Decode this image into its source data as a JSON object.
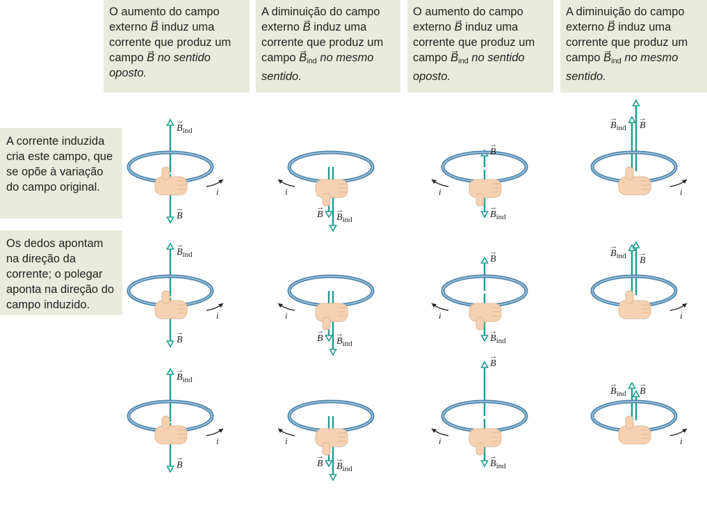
{
  "headers": [
    {
      "pre": "O aumento do campo externo ",
      "vec": "B",
      "mid": " induz uma corrente que produz um campo ",
      "vec2": "B",
      "vec2_sub": "",
      "post": "no sentido oposto."
    },
    {
      "pre": "A diminuição do campo externo ",
      "vec": "B",
      "mid": " induz uma corrente que produz um campo ",
      "vec2": "B",
      "vec2_sub": "ind",
      "post": "no mesmo sentido."
    },
    {
      "pre": "O aumento do campo externo ",
      "vec": "B",
      "mid": " induz uma corrente que produz um campo ",
      "vec2": "B",
      "vec2_sub": "ind",
      "post": "no sentido oposto."
    },
    {
      "pre": "A diminuição do campo externo ",
      "vec": "B",
      "mid": " induz uma corrente que produz um campo ",
      "vec2": "B",
      "vec2_sub": "ind",
      "post": "no mesmo sentido."
    }
  ],
  "side_notes": [
    "A corrente induzida cria este campo, que se opõe à variação do campo original.",
    "Os dedos apontam na direção da corrente; o polegar aponta na direção do campo induzido."
  ],
  "labels": {
    "B": "B",
    "Bind_base": "B",
    "ind": "ind",
    "current": "i"
  },
  "colors": {
    "field_arrow": "#1a9d8f",
    "ring": "#4f86ad",
    "hand": "#f6d2b3",
    "panel": "#e9ebdd"
  }
}
